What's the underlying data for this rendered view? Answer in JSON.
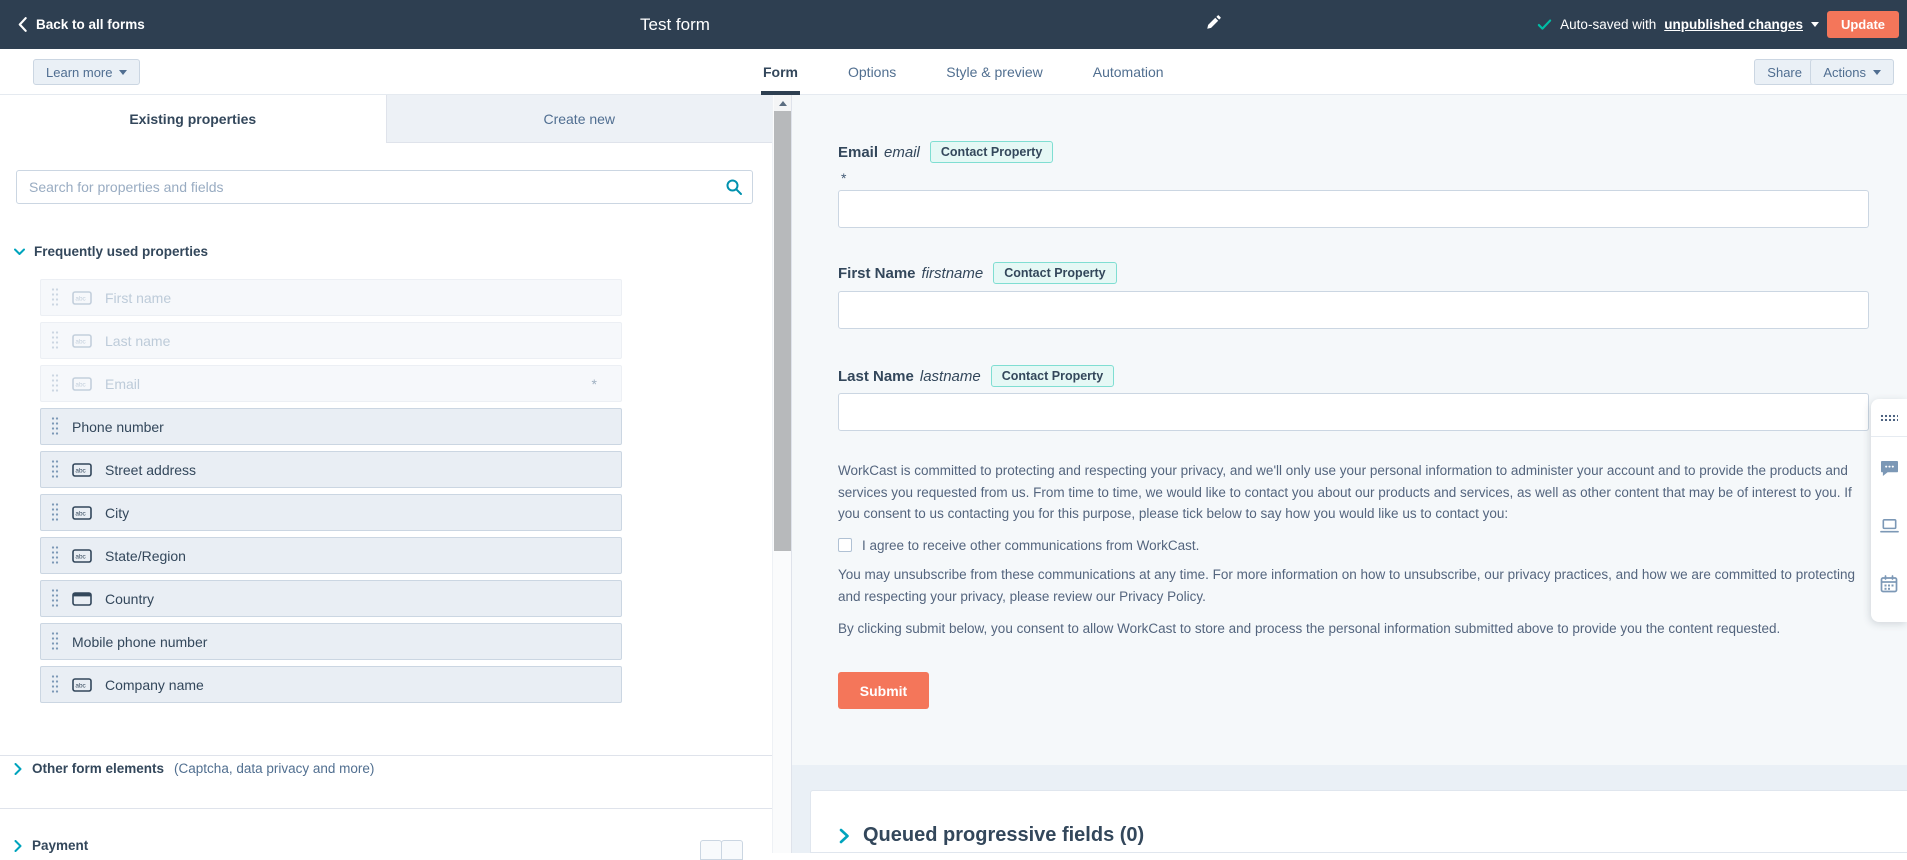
{
  "colors": {
    "topbar_bg": "#2e3f51",
    "accent_orange": "#f4765a",
    "teal": "#00a4bd",
    "search_teal": "#0091ae",
    "check_green": "#00bda5"
  },
  "topbar": {
    "back_label": "Back to all forms",
    "title": "Test form",
    "autosave_prefix": "Auto-saved with",
    "autosave_link": "unpublished changes",
    "update_label": "Update"
  },
  "toolbar": {
    "learn_more_label": "Learn more",
    "tabs": [
      {
        "label": "Form",
        "active": true
      },
      {
        "label": "Options",
        "active": false
      },
      {
        "label": "Style & preview",
        "active": false
      },
      {
        "label": "Automation",
        "active": false
      }
    ],
    "share_label": "Share",
    "actions_label": "Actions"
  },
  "sidebar": {
    "tabs": [
      {
        "label": "Existing properties",
        "active": true
      },
      {
        "label": "Create new",
        "active": false
      }
    ],
    "search_placeholder": "Search for properties and fields",
    "section_title": "Frequently used properties",
    "required_marker": "*",
    "properties": [
      {
        "label": "First name",
        "icon": "text",
        "disabled": true,
        "required": false
      },
      {
        "label": "Last name",
        "icon": "text",
        "disabled": true,
        "required": false
      },
      {
        "label": "Email",
        "icon": "text",
        "disabled": true,
        "required": true
      },
      {
        "label": "Phone number",
        "icon": "none",
        "disabled": false,
        "required": false
      },
      {
        "label": "Street address",
        "icon": "text",
        "disabled": false,
        "required": false
      },
      {
        "label": "City",
        "icon": "text",
        "disabled": false,
        "required": false
      },
      {
        "label": "State/Region",
        "icon": "text",
        "disabled": false,
        "required": false
      },
      {
        "label": "Country",
        "icon": "select",
        "disabled": false,
        "required": false
      },
      {
        "label": "Mobile phone number",
        "icon": "none",
        "disabled": false,
        "required": false
      },
      {
        "label": "Company name",
        "icon": "text",
        "disabled": false,
        "required": false
      }
    ],
    "other_elements_bold": "Other form elements",
    "other_elements_rest": "(Captcha, data privacy and more)",
    "payment_label": "Payment"
  },
  "form": {
    "required_marker": "*",
    "fields": [
      {
        "label": "Email",
        "name": "email",
        "badge": "Contact Property",
        "required": true
      },
      {
        "label": "First Name",
        "name": "firstname",
        "badge": "Contact Property",
        "required": false
      },
      {
        "label": "Last Name",
        "name": "lastname",
        "badge": "Contact Property",
        "required": false
      }
    ],
    "privacy_para1": "WorkCast is committed to protecting and respecting your privacy, and we'll only use your personal information to administer your account and to provide the products and services you requested from us. From time to time, we would like to contact you about our products and services, as well as other content that may be of interest to you. If you consent to us contacting you for this purpose, please tick below to say how you would like us to contact you:",
    "consent_checkbox_label": "I agree to receive other communications from WorkCast.",
    "privacy_para2": "You may unsubscribe from these communications at any time. For more information on how to unsubscribe, our privacy practices, and how we are committed to protecting and respecting your privacy, please review our Privacy Policy.",
    "privacy_para3": "By clicking submit below, you consent to allow WorkCast to store and process the personal information submitted above to provide you the content requested.",
    "submit_label": "Submit"
  },
  "queued": {
    "title": "Queued progressive fields (0)"
  }
}
